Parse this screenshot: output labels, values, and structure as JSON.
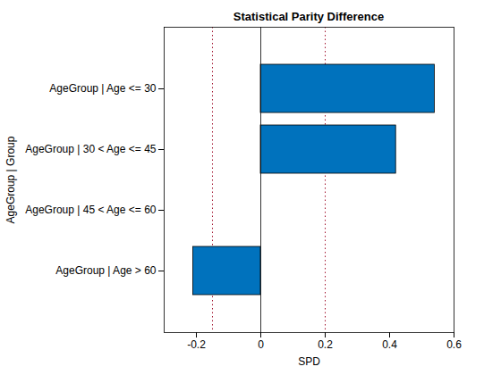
{
  "chart_data": {
    "type": "bar",
    "orientation": "horizontal",
    "title": "Statistical Parity Difference",
    "x_label": "SPD",
    "y_label": "AgeGroup | Group",
    "categories": [
      "AgeGroup | Age <= 30",
      "AgeGroup | 30 < Age <= 45",
      "AgeGroup | 45 < Age <= 60",
      "AgeGroup | Age > 60"
    ],
    "values": [
      0.54,
      0.42,
      0,
      -0.21
    ],
    "color": "#0072bd",
    "reference_lines": [
      -0.15,
      0.2
    ],
    "xlim": [
      -0.3,
      0.6
    ],
    "xticks": [
      -0.2,
      0,
      0.2,
      0.4,
      0.6
    ],
    "grid": false
  }
}
